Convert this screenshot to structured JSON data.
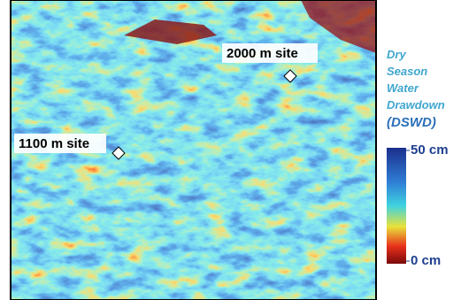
{
  "sites": [
    {
      "label": "2000 m site"
    },
    {
      "label": "1100 m site"
    }
  ],
  "legend": {
    "title_lines": [
      "Dry",
      "Season",
      "Water",
      "Drawdown"
    ],
    "abbreviation": "(DSWD)",
    "range": [
      0,
      50
    ],
    "ticks": [
      {
        "value": 50,
        "label": "50 cm"
      },
      {
        "value": 0,
        "label": "0 cm"
      }
    ]
  }
}
